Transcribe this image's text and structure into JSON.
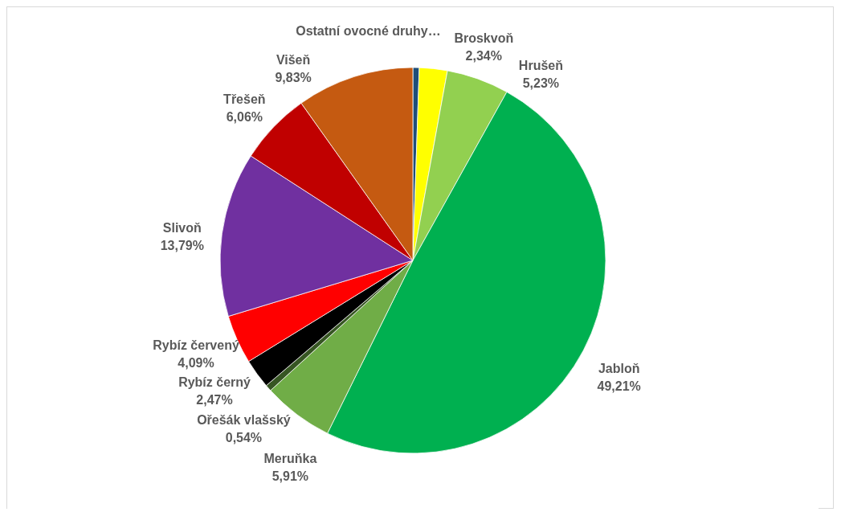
{
  "chart_data": {
    "type": "pie",
    "categories": [
      "Ostatní ovocné druhy…",
      "Broskvoň",
      "Hrušeň",
      "Jabloň",
      "Meruňka",
      "Ořešák vlašský",
      "Rybíz černý",
      "Rybíz červený",
      "Slivoň",
      "Třešeň",
      "Višeň"
    ],
    "values": [
      0.53,
      2.34,
      5.23,
      49.21,
      5.91,
      0.54,
      2.47,
      4.09,
      13.79,
      6.06,
      9.83
    ],
    "colors": [
      "#1f4e79",
      "#ffff00",
      "#92d050",
      "#00b050",
      "#70ad47",
      "#375623",
      "#000000",
      "#ff0000",
      "#7030a0",
      "#c00000",
      "#c55a11"
    ],
    "value_labels": [
      null,
      "2,34%",
      "5,23%",
      "49,21%",
      "5,91%",
      "0,54%",
      "2,47%",
      "4,09%",
      "13,79%",
      "6,06%",
      "9,83%"
    ]
  }
}
